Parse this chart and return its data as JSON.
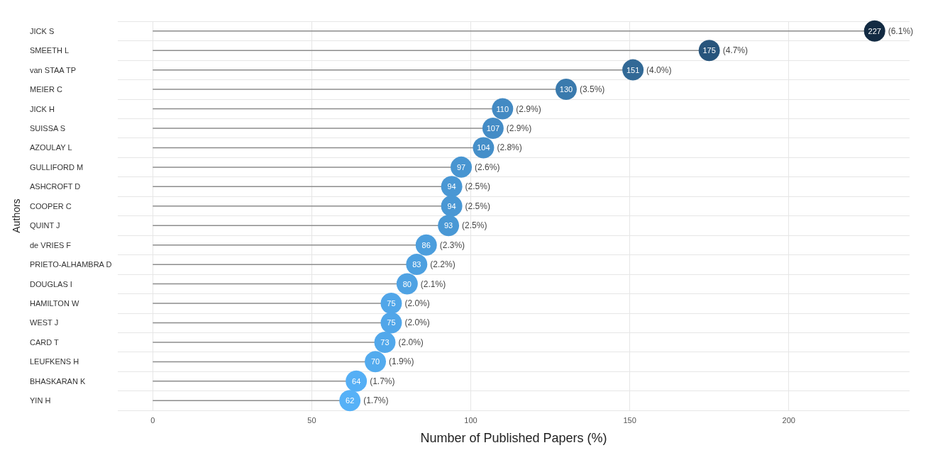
{
  "chart_data": {
    "type": "lollipop",
    "orientation": "horizontal",
    "xlabel": "Number of Published Papers (%)",
    "ylabel": "Authors",
    "categories": [
      "JICK S",
      "SMEETH L",
      "van STAA TP",
      "MEIER C",
      "JICK H",
      "SUISSA S",
      "AZOULAY L",
      "GULLIFORD M",
      "ASHCROFT D",
      "COOPER C",
      "QUINT J",
      "de VRIES F",
      "PRIETO-ALHAMBRA D",
      "DOUGLAS I",
      "HAMILTON W",
      "WEST J",
      "CARD T",
      "LEUFKENS H",
      "BHASKARAN K",
      "YIN H"
    ],
    "values": [
      227,
      175,
      151,
      130,
      110,
      107,
      104,
      97,
      94,
      94,
      93,
      86,
      83,
      80,
      75,
      75,
      73,
      70,
      64,
      62
    ],
    "colors": [
      "#132b43",
      "#28557c",
      "#326996",
      "#3a7aad",
      "#438ac3",
      "#448cc6",
      "#458fc9",
      "#4895d1",
      "#4997d4",
      "#4997d4",
      "#4998d5",
      "#4c9edd",
      "#4da0e0",
      "#4fa2e3",
      "#51a6e9",
      "#51a6e9",
      "#52a8eb",
      "#53abee",
      "#55aff5",
      "#56b1f7"
    ],
    "data_labels": true,
    "annotations": [
      {
        "text": "(6.1%)",
        "x": 227,
        "y": "JICK S"
      },
      {
        "text": "(4.7%)",
        "x": 175,
        "y": "SMEETH L"
      },
      {
        "text": "(4.0%)",
        "x": 151,
        "y": "van STAA TP"
      },
      {
        "text": "(3.5%)",
        "x": 130,
        "y": "MEIER C"
      },
      {
        "text": "(2.9%)",
        "x": 110,
        "y": "JICK H"
      },
      {
        "text": "(2.9%)",
        "x": 107,
        "y": "SUISSA S"
      },
      {
        "text": "(2.8%)",
        "x": 104,
        "y": "AZOULAY L"
      },
      {
        "text": "(2.6%)",
        "x": 97,
        "y": "GULLIFORD M"
      },
      {
        "text": "(2.5%)",
        "x": 94,
        "y": "ASHCROFT D"
      },
      {
        "text": "(2.5%)",
        "x": 94,
        "y": "COOPER C"
      },
      {
        "text": "(2.5%)",
        "x": 93,
        "y": "QUINT J"
      },
      {
        "text": "(2.3%)",
        "x": 86,
        "y": "de VRIES F"
      },
      {
        "text": "(2.2%)",
        "x": 83,
        "y": "PRIETO-ALHAMBRA D"
      },
      {
        "text": "(2.1%)",
        "x": 80,
        "y": "DOUGLAS I"
      },
      {
        "text": "(2.0%)",
        "x": 75,
        "y": "HAMILTON W"
      },
      {
        "text": "(2.0%)",
        "x": 75,
        "y": "WEST J"
      },
      {
        "text": "(2.0%)",
        "x": 73,
        "y": "CARD T"
      },
      {
        "text": "(1.9%)",
        "x": 70,
        "y": "LEUFKENS H"
      },
      {
        "text": "(1.7%)",
        "x": 64,
        "y": "BHASKARAN K"
      },
      {
        "text": "(1.7%)",
        "x": 62,
        "y": "YIN H"
      }
    ],
    "xlim": [
      -11,
      238
    ],
    "xticks": [
      0,
      50,
      100,
      150,
      200
    ],
    "grid": true,
    "marker": "circle"
  }
}
